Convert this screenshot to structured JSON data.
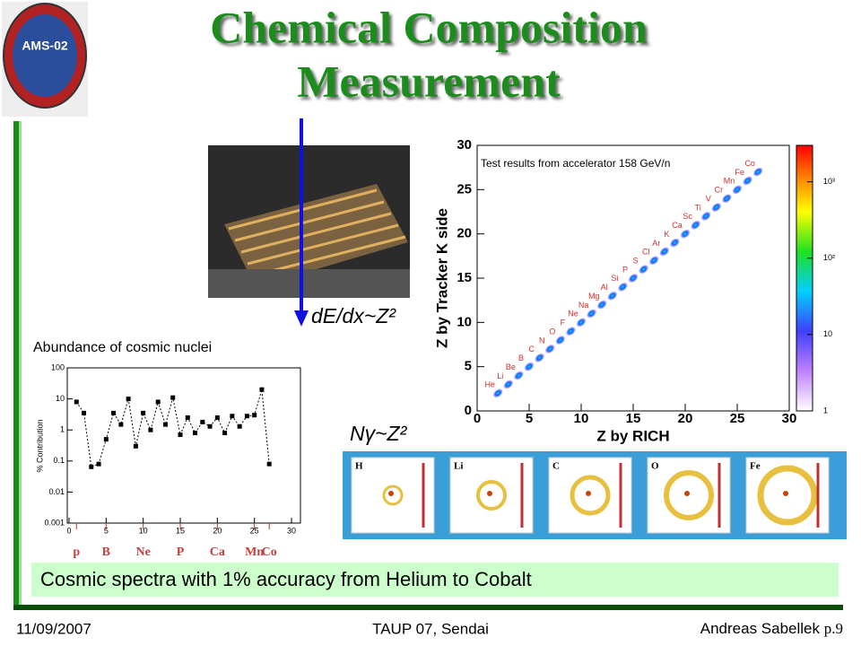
{
  "slide": {
    "title": "Chemical Composition Measurement",
    "logo_text": "AMS-02",
    "arrow_label": "dE/dx~Z²",
    "ring_label": "Nγ~Z²",
    "ring_panels": [
      "H",
      "Li",
      "C",
      "O",
      "Fe"
    ],
    "banner": "Cosmic spectra with 1% accuracy from Helium to Cobalt",
    "footer": {
      "date": "11/09/2007",
      "event": "TAUP 07, Sendai",
      "author": "Andreas Sabellek",
      "page": "p.9"
    }
  },
  "chart_data": [
    {
      "type": "scatter",
      "title": "Abundance of cosmic nuclei",
      "y_label": "% Contribution",
      "x": [
        1,
        2,
        3,
        4,
        5,
        6,
        7,
        8,
        9,
        10,
        11,
        12,
        13,
        14,
        15,
        16,
        17,
        18,
        19,
        20,
        21,
        22,
        23,
        24,
        25,
        26,
        27
      ],
      "values": [
        8,
        3.5,
        0.065,
        0.08,
        0.5,
        3.5,
        1.5,
        10,
        0.3,
        3.5,
        1,
        8,
        1.5,
        11,
        0.7,
        2.5,
        0.8,
        1.8,
        1.3,
        2.5,
        0.8,
        2.8,
        1.3,
        2.8,
        3,
        20,
        0.08
      ],
      "color": "#000000",
      "xlim": [
        0,
        30
      ],
      "xticks": [
        0,
        5,
        10,
        15,
        20,
        25,
        30
      ],
      "ylim": [
        0.001,
        100
      ],
      "yticks": [
        0.001,
        0.01,
        0.1,
        1,
        10,
        100
      ],
      "log_y": true,
      "element_labels": [
        {
          "z": 1,
          "label": "p"
        },
        {
          "z": 5,
          "label": "B"
        },
        {
          "z": 10,
          "label": "Ne"
        },
        {
          "z": 15,
          "label": "P"
        },
        {
          "z": 20,
          "label": "Ca"
        },
        {
          "z": 25,
          "label": "Mn"
        },
        {
          "z": 27,
          "label": "Co"
        }
      ]
    },
    {
      "type": "scatter",
      "title": "Test results from accelerator 158 GeV/n",
      "x_label": "Z by RICH",
      "y_label": "Z by Tracker K side",
      "categories": [
        "He",
        "Li",
        "Be",
        "B",
        "C",
        "N",
        "O",
        "F",
        "Ne",
        "Na",
        "Mg",
        "Al",
        "Si",
        "P",
        "S",
        "Cl",
        "Ar",
        "K",
        "Ca",
        "Sc",
        "Ti",
        "V",
        "Cr",
        "Mn",
        "Fe",
        "Co"
      ],
      "x": [
        2,
        3,
        4,
        5,
        6,
        7,
        8,
        9,
        10,
        11,
        12,
        13,
        14,
        15,
        16,
        17,
        18,
        19,
        20,
        21,
        22,
        23,
        24,
        25,
        26,
        27
      ],
      "values": [
        2,
        3,
        4,
        5,
        6,
        7,
        8,
        9,
        10,
        11,
        12,
        13,
        14,
        15,
        16,
        17,
        18,
        19,
        20,
        21,
        22,
        23,
        24,
        25,
        26,
        27
      ],
      "xlim": [
        0,
        30
      ],
      "xticks": [
        0,
        5,
        10,
        15,
        20,
        25,
        30
      ],
      "ylim": [
        0,
        30
      ],
      "yticks": [
        0,
        5,
        10,
        15,
        20,
        25,
        30
      ],
      "colorbar": {
        "lim": [
          1,
          3000
        ],
        "ticks": [
          1,
          10,
          {
            "value": 100,
            "label": "10²"
          },
          {
            "value": 1000,
            "label": "10³"
          }
        ]
      }
    }
  ]
}
